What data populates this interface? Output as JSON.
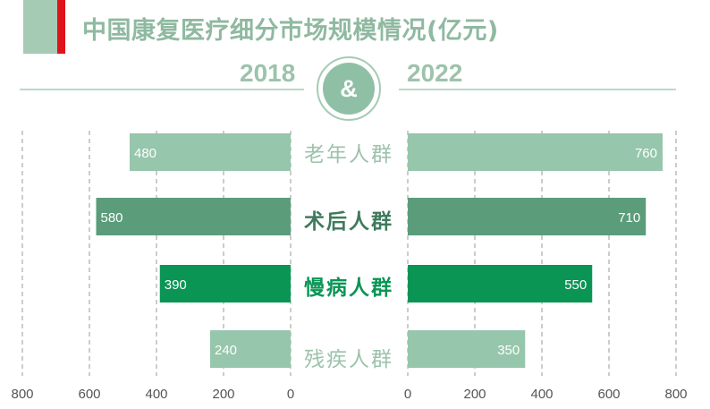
{
  "title": "中国康复医疗细分市场规模情况(亿元)",
  "badge": "&",
  "colors": {
    "title_text": "#8fb9a0",
    "accent_red": "#e0141b",
    "year_text": "#9cc3ab"
  },
  "chart_data": {
    "type": "bar",
    "orientation": "horizontal-butterfly",
    "title": "中国康复医疗细分市场规模情况(亿元)",
    "categories": [
      "老年人群",
      "术后人群",
      "慢病人群",
      "残疾人群"
    ],
    "category_colors": [
      "#96c6ab",
      "#5b9c7b",
      "#0a9555",
      "#96c6ab"
    ],
    "category_label_colors": [
      "#9cc3ab",
      "#3f7a5c",
      "#0a9555",
      "#9cc3ab"
    ],
    "grid": true,
    "series": [
      {
        "name": "2018",
        "values": [
          480,
          580,
          390,
          240
        ],
        "value_labels": [
          "480",
          "580",
          "390",
          "240"
        ],
        "xlim": [
          0,
          800
        ],
        "direction": "reversed",
        "ticks": [
          800,
          600,
          400,
          200,
          0
        ]
      },
      {
        "name": "2022",
        "values": [
          760,
          710,
          550,
          350
        ],
        "value_labels": [
          "760",
          "710",
          "550",
          "350"
        ],
        "xlim": [
          0,
          800
        ],
        "direction": "normal",
        "ticks": [
          0,
          200,
          400,
          600,
          800
        ]
      }
    ]
  }
}
